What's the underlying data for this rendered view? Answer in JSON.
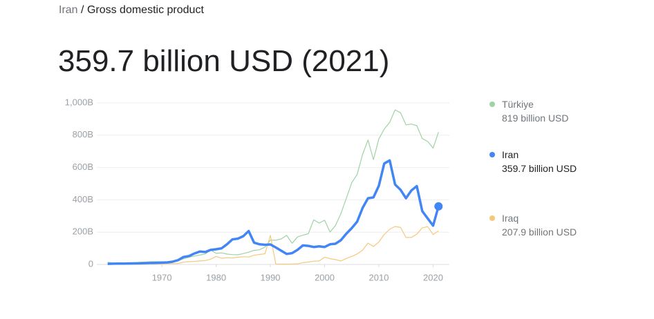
{
  "breadcrumb": {
    "parent": "Iran",
    "separator": "/",
    "current": "Gross domestic product"
  },
  "chart_data": {
    "type": "line",
    "title": "359.7 billion USD (2021)",
    "x": [
      1960,
      1961,
      1962,
      1963,
      1964,
      1965,
      1966,
      1967,
      1968,
      1969,
      1970,
      1971,
      1972,
      1973,
      1974,
      1975,
      1976,
      1977,
      1978,
      1979,
      1980,
      1981,
      1982,
      1983,
      1984,
      1985,
      1986,
      1987,
      1988,
      1989,
      1990,
      1991,
      1992,
      1993,
      1994,
      1995,
      1996,
      1997,
      1998,
      1999,
      2000,
      2001,
      2002,
      2003,
      2004,
      2005,
      2006,
      2007,
      2008,
      2009,
      2010,
      2011,
      2012,
      2013,
      2014,
      2015,
      2016,
      2017,
      2018,
      2019,
      2020,
      2021
    ],
    "series": [
      {
        "name": "Türkiye",
        "summary": "819 billion USD",
        "color": "#9ed3a3",
        "width": 1.2,
        "values": [
          14,
          8,
          9,
          10,
          11,
          12,
          14,
          15,
          17,
          18,
          17,
          16,
          20,
          25,
          35,
          45,
          52,
          58,
          65,
          89,
          69,
          72,
          64,
          61,
          60,
          67,
          76,
          87,
          91,
          107,
          151,
          150,
          158,
          180,
          131,
          170,
          181,
          190,
          276,
          256,
          274,
          201,
          240,
          315,
          409,
          506,
          557,
          681,
          770,
          649,
          777,
          838,
          880,
          957,
          939,
          864,
          869,
          859,
          779,
          761,
          720,
          819
        ]
      },
      {
        "name": "Iraq",
        "summary": "207.9 billion USD",
        "color": "#f6c87c",
        "width": 1.2,
        "values": [
          null,
          null,
          null,
          null,
          null,
          null,
          null,
          null,
          3,
          3.5,
          4,
          5,
          5,
          6,
          14,
          17,
          19,
          22,
          24,
          33,
          50,
          38,
          42,
          40,
          45,
          48,
          46,
          57,
          62,
          66,
          180,
          3,
          2,
          2,
          3,
          4,
          11,
          15,
          20,
          22,
          45,
          36,
          30,
          22,
          37,
          50,
          65,
          89,
          132,
          111,
          139,
          186,
          218,
          235,
          229,
          167,
          167,
          187,
          227,
          234,
          185,
          207.9
        ]
      },
      {
        "name": "Iran",
        "summary": "359.7 billion USD",
        "color": "#4285f4",
        "width": 3.5,
        "highlight": true,
        "values": [
          4,
          4.5,
          5,
          5,
          6,
          6.5,
          7,
          8,
          9,
          10,
          11,
          13,
          17,
          27,
          46,
          52,
          68,
          80,
          77,
          90,
          94,
          100,
          125,
          155,
          160,
          175,
          207,
          135,
          125,
          122,
          124,
          105,
          85,
          65,
          70,
          90,
          118,
          115,
          108,
          112,
          108,
          125,
          128,
          150,
          190,
          225,
          265,
          350,
          410,
          415,
          487,
          625,
          644,
          495,
          462,
          410,
          458,
          485,
          330,
          285,
          240,
          359.7
        ]
      }
    ],
    "xlim": [
      1958,
      2023
    ],
    "xticks": [
      1970,
      1980,
      1990,
      2000,
      2010,
      2020
    ],
    "ylim": [
      0,
      1000
    ],
    "yticks": [
      0,
      {
        "value": 200,
        "label": "200B"
      },
      {
        "value": 400,
        "label": "400B"
      },
      {
        "value": 600,
        "label": "600B"
      },
      {
        "value": 800,
        "label": "800B"
      },
      {
        "value": 1000,
        "label": "1,000B"
      }
    ],
    "grid": true
  }
}
